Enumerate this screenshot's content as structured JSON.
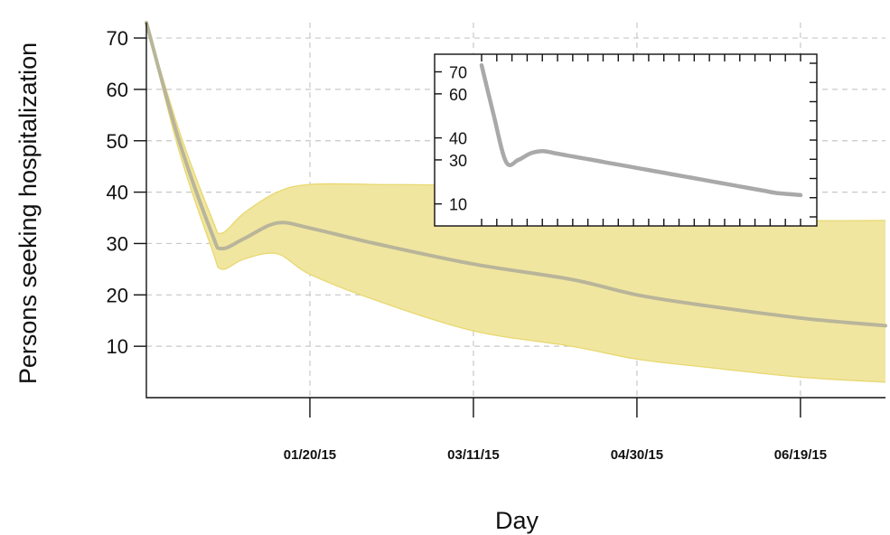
{
  "chart_data": {
    "type": "area",
    "xlabel": "Day",
    "ylabel": "Persons seeking hospitalization",
    "x_ticks": [
      "01/20/15",
      "03/11/15",
      "04/30/15",
      "06/19/15"
    ],
    "y_ticks": [
      10,
      20,
      30,
      40,
      50,
      60,
      70
    ],
    "xlim": [
      "12/01/14",
      "07/15/15"
    ],
    "ylim": [
      0,
      73
    ],
    "grid": true,
    "colors": {
      "band": "#f1e6a0",
      "band_edge": "#e8d870",
      "median": "#b9b59a",
      "inset_line": "#a9a9a9"
    },
    "series": [
      {
        "x": [
          "12/01/14",
          "12/11/14",
          "12/21/14",
          "12/24/14",
          "12/31/14",
          "01/10/15",
          "01/20/15",
          "02/09/15",
          "03/11/15",
          "04/10/15",
          "04/30/15",
          "05/20/15",
          "06/19/15",
          "07/15/15"
        ],
        "y": [
          73,
          50,
          32,
          29,
          31,
          34,
          33,
          30,
          26,
          23,
          20,
          18,
          15.5,
          14
        ],
        "lower": [
          73,
          48,
          29,
          25,
          27,
          28,
          24,
          19,
          13,
          10,
          7.5,
          6,
          4,
          3
        ],
        "upper": [
          73,
          52,
          35,
          32,
          36,
          40,
          41.5,
          41.5,
          41,
          38,
          36,
          35.5,
          34.5,
          34.5
        ]
      }
    ],
    "inset": {
      "type": "line",
      "y_ticks": [
        10,
        30,
        40,
        60,
        70
      ],
      "x_tick_count": 22,
      "ylim": [
        0,
        78
      ],
      "series": [
        {
          "y": [
            73,
            50,
            29,
            30,
            33,
            34,
            33,
            32,
            31,
            30,
            29,
            28,
            27,
            26,
            25,
            24,
            23,
            22,
            21,
            20,
            19,
            18,
            17,
            16,
            15,
            14.5,
            14
          ]
        }
      ]
    }
  }
}
